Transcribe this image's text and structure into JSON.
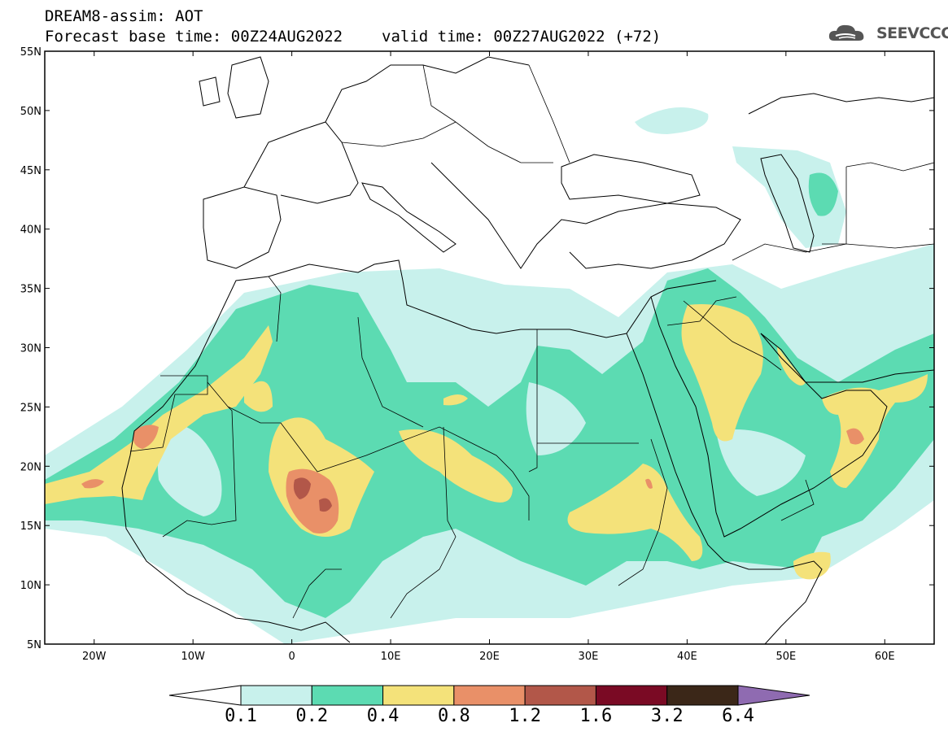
{
  "header": {
    "title_line1": "DREAM8-assim: AOT",
    "base_time": "Forecast base time: 00Z24AUG2022",
    "valid_time": "valid time: 00Z27AUG2022 (+72)"
  },
  "logo": {
    "text": "SEEVCCC",
    "icon": "cloud-logo-icon"
  },
  "map": {
    "projection": "lat-lon",
    "lon_range": [
      -25,
      65
    ],
    "lat_range": [
      5,
      55
    ],
    "lat_labels": [
      "55N",
      "50N",
      "45N",
      "40N",
      "35N",
      "30N",
      "25N",
      "20N",
      "15N",
      "10N",
      "5N"
    ],
    "lon_labels": [
      "20W",
      "10W",
      "0",
      "10E",
      "20E",
      "30E",
      "40E",
      "50E",
      "60E"
    ]
  },
  "colorbar": {
    "colors": [
      "#c8f1ec",
      "#5cdbb2",
      "#f4e27a",
      "#e99068",
      "#b25749",
      "#7a0a24",
      "#3b2718",
      "#8f6bb1"
    ],
    "labels": [
      "0.1",
      "0.2",
      "0.4",
      "0.8",
      "1.2",
      "1.6",
      "3.2",
      "6.4"
    ]
  }
}
